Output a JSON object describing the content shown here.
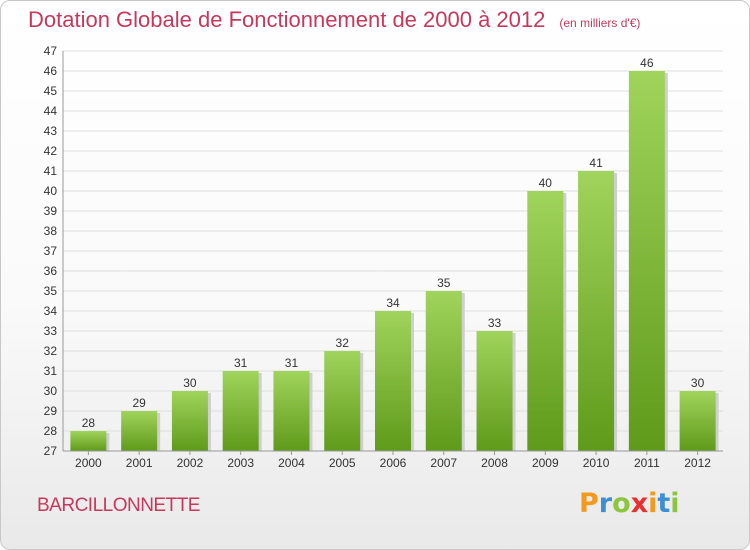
{
  "title": "Dotation Globale de Fonctionnement de 2000 à 2012",
  "subtitle": "(en milliers d'€)",
  "commune": "BARCILLONNETTE",
  "brand": {
    "letters": [
      "P",
      "r",
      "o",
      "x",
      "i",
      "t",
      "i"
    ],
    "colors": [
      "#f39a1e",
      "#3d8fd3",
      "#8cc63e",
      "#e9302d",
      "#f39a1e",
      "#3d8fd3",
      "#8cc63e"
    ]
  },
  "colors": {
    "bar_top": "#a0d45c",
    "bar_bottom": "#5f9a1a",
    "text": "#c8385a"
  },
  "chart_data": {
    "type": "bar",
    "categories": [
      "2000",
      "2001",
      "2002",
      "2003",
      "2004",
      "2005",
      "2006",
      "2007",
      "2008",
      "2009",
      "2010",
      "2011",
      "2012"
    ],
    "values": [
      28,
      29,
      30,
      31,
      31,
      32,
      34,
      35,
      33,
      40,
      41,
      46,
      30
    ],
    "ylim": [
      27,
      47
    ],
    "yticks": [
      27,
      28,
      29,
      30,
      31,
      32,
      33,
      34,
      35,
      36,
      37,
      38,
      39,
      40,
      41,
      42,
      43,
      44,
      45,
      46,
      47
    ],
    "grid": true,
    "xlabel": "",
    "ylabel": ""
  }
}
